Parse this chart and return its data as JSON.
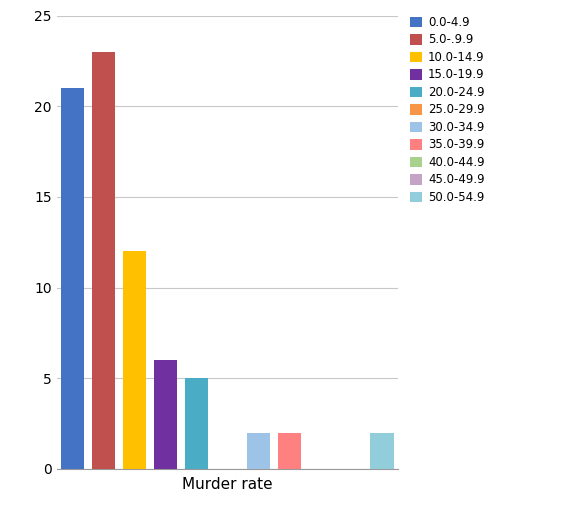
{
  "categories": [
    "0.0-4.9",
    "5.0-.9.9",
    "10.0-14.9",
    "15.0-19.9",
    "20.0-24.9",
    "25.0-29.9",
    "30.0-34.9",
    "35.0-39.9",
    "40.0-44.9",
    "45.0-49.9",
    "50.0-54.9"
  ],
  "legend_labels": [
    "0.0-4.9",
    "5.0-.9.9",
    "10.0-14.9",
    "15.0-19.9",
    "20.0-24.9",
    "25.0-29.9",
    "30.0-34.9",
    "35.0-39.9",
    "40.0-44.9",
    "45.0-49.9",
    "50.0-54.9"
  ],
  "values": [
    21,
    23,
    12,
    6,
    5,
    0,
    2,
    2,
    0,
    0,
    2
  ],
  "colors": [
    "#4472C4",
    "#C0504D",
    "#FFC000",
    "#7030A0",
    "#4BACC6",
    "#F79646",
    "#9DC3E6",
    "#FF8080",
    "#A9D18E",
    "#C5A3C5",
    "#92CDDC"
  ],
  "xlabel": "Murder rate",
  "ylim": [
    0,
    25
  ],
  "yticks": [
    0,
    5,
    10,
    15,
    20,
    25
  ],
  "background_color": "#FFFFFF",
  "grid_color": "#C8C8C8",
  "figsize": [
    5.68,
    5.21
  ],
  "dpi": 100
}
